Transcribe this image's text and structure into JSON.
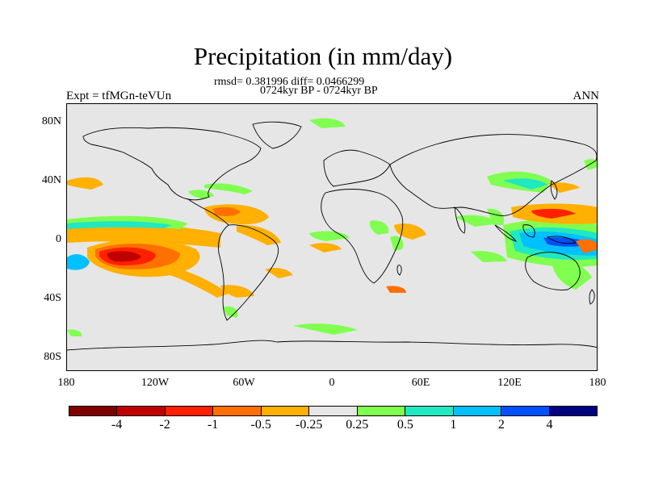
{
  "title": "Precipitation (in mm/day)",
  "stats": "rmsd= 0.381996 diff= 0.0466299",
  "period": "0724kyr BP - 0724kyr BP",
  "expt": "Expt = tfMGn-teVUn",
  "season": "ANN",
  "lat_labels": [
    "80N",
    "40N",
    "0",
    "40S",
    "80S"
  ],
  "lon_labels": [
    "180",
    "120W",
    "60W",
    "0",
    "60E",
    "120E",
    "180"
  ],
  "colorbar": {
    "colors": [
      "#800000",
      "#c00000",
      "#ff2000",
      "#ff7000",
      "#ffb000",
      "#e6e6e6",
      "#80ff50",
      "#20e8c0",
      "#00c0ff",
      "#0050ff",
      "#000080"
    ],
    "labels": [
      "-4",
      "-2",
      "-1",
      "-0.5",
      "-0.25",
      "0.25",
      "0.5",
      "1",
      "2",
      "4"
    ]
  },
  "palette": {
    "background": "#e6e6e6",
    "coast": "#000000"
  }
}
